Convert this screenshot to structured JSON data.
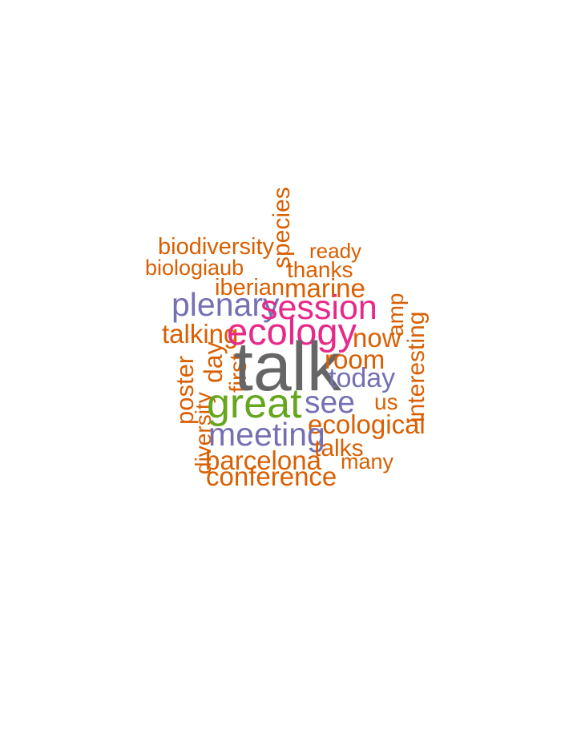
{
  "words": {
    "talk": "talk",
    "great": "great",
    "ecology": "ecology",
    "session": "session",
    "plenary": "plenary",
    "meeting": "meeting",
    "see": "see",
    "today": "today",
    "species": "species",
    "biodiversity": "biodiversity",
    "ready": "ready",
    "biologiaub": "biologiaub",
    "thanks": "thanks",
    "iberian": "iberian",
    "marine": "marine",
    "amp": "amp",
    "interesting": "interesting",
    "talking": "talking",
    "now": "now",
    "room": "room",
    "poster": "poster",
    "day": "day",
    "first": "first",
    "us": "us",
    "diversity": "diversity",
    "ecological": "ecological",
    "talks": "talks",
    "barcelona": "barcelona",
    "many": "many",
    "conference": "conference"
  },
  "colors": {
    "orange": "#d95f02",
    "purple": "#7570b3",
    "pink": "#e7298a",
    "green": "#66a61e",
    "gray": "#666666"
  }
}
